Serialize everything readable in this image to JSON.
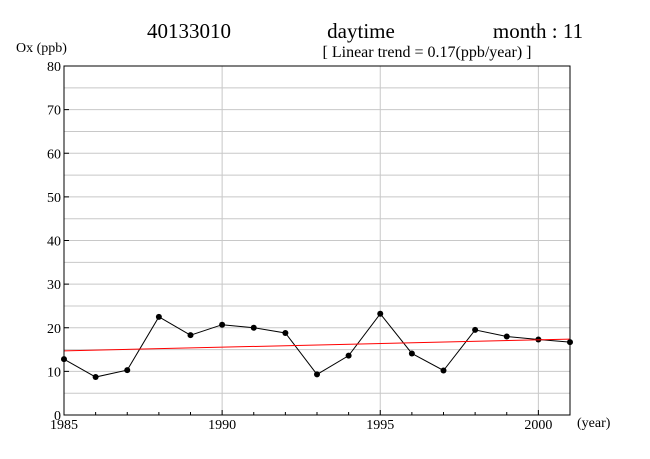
{
  "header": {
    "station": "40133010",
    "period": "daytime",
    "month": "month : 11",
    "trend_label": "[ Linear trend = 0.17(ppb/year) ]"
  },
  "chart_data": {
    "type": "line",
    "title": "",
    "ylabel": "Ox (ppb)",
    "xlabel": "(year)",
    "xlim": [
      1985,
      2001
    ],
    "ylim": [
      0,
      80
    ],
    "x_ticks": [
      1985,
      1990,
      1995,
      2000
    ],
    "y_ticks": [
      0,
      10,
      20,
      30,
      40,
      50,
      60,
      70,
      80
    ],
    "y_minor_step": 5,
    "grid": true,
    "series": [
      {
        "type": "line",
        "color": "#000000",
        "markers": true,
        "x": [
          1985,
          1986,
          1987,
          1988,
          1989,
          1990,
          1991,
          1992,
          1993,
          1994,
          1995,
          1996,
          1997,
          1998,
          1999,
          2000,
          2001
        ],
        "y": [
          12.8,
          8.7,
          10.3,
          22.5,
          18.3,
          20.7,
          20.0,
          18.8,
          9.3,
          13.6,
          23.2,
          14.1,
          10.2,
          19.5,
          18.0,
          17.3,
          16.7
        ]
      },
      {
        "type": "trend",
        "color": "#ff0000",
        "markers": false,
        "x": [
          1985,
          2001
        ],
        "y": [
          14.7,
          17.4
        ]
      }
    ]
  }
}
